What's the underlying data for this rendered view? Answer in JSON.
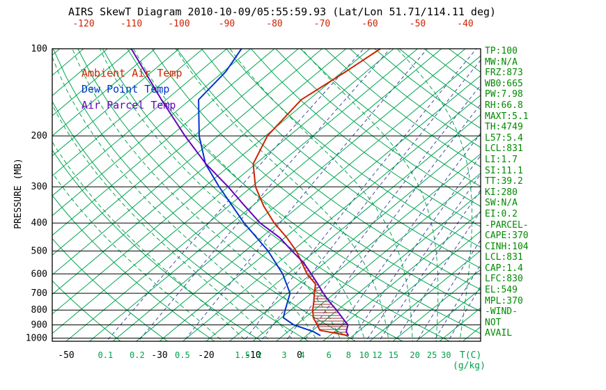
{
  "window": {
    "title": "AIRS SkewT Diagram 2010-10-09/05:55:59.93 (Lat/Lon 51.71/114.11 deg)"
  },
  "legend": {
    "items": [
      {
        "label": "Ambient Air Temp",
        "color": "#cc2200"
      },
      {
        "label": "Dew Point Temp",
        "color": "#0033cc"
      },
      {
        "label": "Air Parcel Temp",
        "color": "#6600bb"
      }
    ]
  },
  "axes": {
    "pressure_label": "PRESSURE (MB)",
    "pressure_ticks": [
      100,
      200,
      300,
      400,
      500,
      600,
      700,
      800,
      900,
      1000
    ],
    "top_temp_ticks": [
      -120,
      -110,
      -100,
      -90,
      -80,
      -70,
      -60,
      -50,
      -40
    ],
    "top_axis_color": "#cc2200",
    "bottom_temp_ticks": [
      -50,
      -30,
      -20,
      -10,
      0
    ],
    "temp_tick_color": "#000000",
    "mixratio_ticks": [
      0.1,
      0.2,
      0.5,
      1.5,
      2,
      3,
      4,
      6,
      8,
      10,
      12,
      15,
      20,
      25,
      30
    ],
    "mixratio_tick_color": "#00a04a",
    "temp_unit_label": "T(C)",
    "mixratio_unit_label": "(g/kg)"
  },
  "stats_panel": {
    "color": "#008a00",
    "lines": [
      "TP:100",
      "MW:N/A",
      "FRZ:873",
      "WB0:665",
      "PW:7.98",
      "RH:66.8",
      "MAXT:5.1",
      "TH:4749",
      "L57:5.4",
      "LCL:831",
      "LI:1.7",
      "SI:11.1",
      "TT:39.2",
      "KI:280",
      "SW:N/A",
      "EI:0.2",
      "-PARCEL-",
      "CAPE:370",
      "CINH:104",
      "LCL:831",
      "CAP:1.4",
      "LFC:830",
      "EL:549",
      "MPL:370",
      "-WIND-",
      "NOT",
      "AVAIL"
    ]
  },
  "chart_data": {
    "type": "line",
    "title": "AIRS SkewT Diagram 2010-10-09/05:55:59.93 (Lat/Lon 51.71/114.11 deg)",
    "x_axis": {
      "label": "T(C)",
      "skewed": true,
      "top_ticks": [
        -120,
        -110,
        -100,
        -90,
        -80,
        -70,
        -60,
        -50,
        -40
      ],
      "bottom_ticks": [
        -50,
        -30,
        -20,
        -10,
        0
      ]
    },
    "y_axis": {
      "label": "PRESSURE (MB)",
      "scale": "log",
      "range_mb": [
        100,
        1050
      ],
      "ticks": [
        100,
        200,
        300,
        400,
        500,
        600,
        700,
        800,
        900,
        1000
      ]
    },
    "series": [
      {
        "name": "Ambient Air Temp",
        "color": "#cc2200",
        "units": [
          "pressure_mb",
          "temp_C"
        ],
        "points": [
          [
            980,
            9.0
          ],
          [
            940,
            1.5
          ],
          [
            900,
            -0.5
          ],
          [
            850,
            -3.2
          ],
          [
            800,
            -5.3
          ],
          [
            750,
            -7.2
          ],
          [
            700,
            -9.3
          ],
          [
            650,
            -11.5
          ],
          [
            600,
            -15.9
          ],
          [
            550,
            -19.8
          ],
          [
            500,
            -24.1
          ],
          [
            450,
            -29.5
          ],
          [
            400,
            -36.0
          ],
          [
            350,
            -42.5
          ],
          [
            300,
            -49.2
          ],
          [
            250,
            -55.5
          ],
          [
            200,
            -59.6
          ],
          [
            150,
            -61.6
          ],
          [
            120,
            -59.3
          ],
          [
            100,
            -57.8
          ]
        ]
      },
      {
        "name": "Dew Point Temp",
        "color": "#0033cc",
        "units": [
          "pressure_mb",
          "temp_C"
        ],
        "points": [
          [
            980,
            3.0
          ],
          [
            950,
            0.5
          ],
          [
            900,
            -5.5
          ],
          [
            850,
            -9.6
          ],
          [
            800,
            -11.2
          ],
          [
            700,
            -14.5
          ],
          [
            600,
            -21.1
          ],
          [
            500,
            -30.1
          ],
          [
            400,
            -42.4
          ],
          [
            300,
            -56.9
          ],
          [
            250,
            -65.6
          ],
          [
            200,
            -74.0
          ],
          [
            150,
            -83.2
          ],
          [
            120,
            -84.5
          ],
          [
            100,
            -86.9
          ]
        ]
      },
      {
        "name": "Air Parcel Temp",
        "color": "#6600bb",
        "units": [
          "pressure_mb",
          "temp_C"
        ],
        "points": [
          [
            980,
            9.0
          ],
          [
            950,
            7.5
          ],
          [
            900,
            6.1
          ],
          [
            850,
            3.0
          ],
          [
            800,
            -0.2
          ],
          [
            750,
            -3.8
          ],
          [
            700,
            -7.4
          ],
          [
            650,
            -11.0
          ],
          [
            600,
            -15.0
          ],
          [
            549,
            -19.5
          ],
          [
            500,
            -25.0
          ],
          [
            450,
            -31.0
          ],
          [
            400,
            -39.0
          ],
          [
            350,
            -46.5
          ],
          [
            300,
            -55.0
          ],
          [
            250,
            -65.5
          ],
          [
            200,
            -77.0
          ],
          [
            150,
            -91.0
          ],
          [
            100,
            -110.0
          ]
        ]
      }
    ],
    "cape_hatch": {
      "between": [
        "Ambient Air Temp",
        "Air Parcel Temp"
      ],
      "pressure_range": [
        965,
        560
      ],
      "color": "#903030"
    },
    "background": {
      "isotherms": {
        "color": "#00a651",
        "range": [
          -130,
          40
        ],
        "step": 5
      },
      "dry_adiabats": {
        "color": "#00a651",
        "theta_range": [
          -40,
          170
        ],
        "step": 10
      },
      "moist_adiabats": {
        "color": "#00a651",
        "t1000_range": [
          -15,
          40
        ],
        "step": 5,
        "dashed": true
      },
      "mixing_ratio": {
        "color": "#4444aa",
        "dashed": true,
        "values": [
          0.1,
          0.2,
          0.5,
          1.5,
          2,
          3,
          4,
          6,
          8,
          10,
          12,
          15,
          20,
          25,
          30
        ]
      }
    }
  }
}
